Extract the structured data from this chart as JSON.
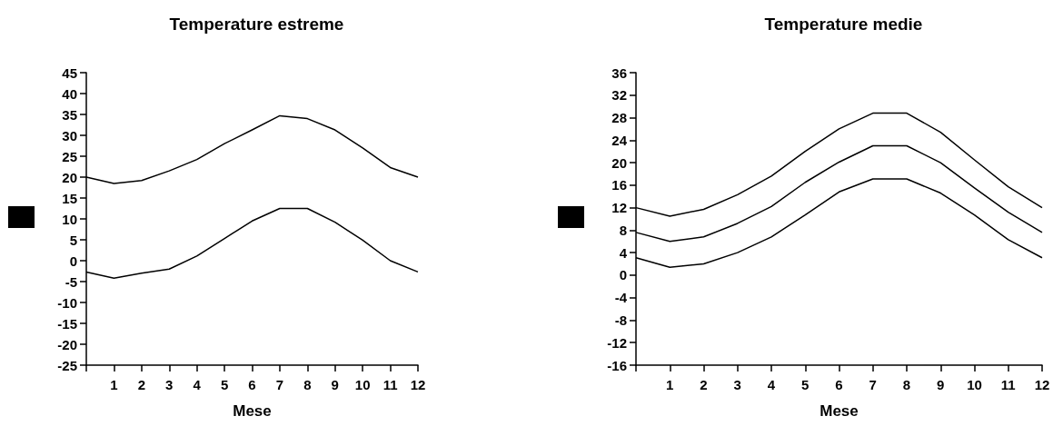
{
  "chart_data": [
    {
      "type": "line",
      "title": "Temperature estreme",
      "xlabel": "Mese",
      "x": [
        0,
        1,
        2,
        3,
        4,
        5,
        6,
        7,
        8,
        9,
        10,
        11,
        12
      ],
      "series": [
        {
          "color": "#000000",
          "values": [
            20,
            18.5,
            19.2,
            21.5,
            24.2,
            28,
            31.3,
            34.7,
            34,
            31.3,
            27,
            22.3,
            20
          ]
        },
        {
          "color": "#000000",
          "values": [
            -2.7,
            -4.2,
            -3,
            -2,
            1.1,
            5.3,
            9.5,
            12.5,
            12.5,
            9.2,
            4.9,
            0,
            -2.7
          ]
        }
      ],
      "xlim": [
        0,
        12
      ],
      "xticks": [
        {
          "value": 0,
          "label": null
        },
        1,
        2,
        3,
        4,
        5,
        6,
        7,
        8,
        9,
        10,
        11,
        12
      ],
      "ylim": [
        -25,
        45
      ],
      "yticks": [
        -25,
        -20,
        -15,
        -10,
        -5,
        0,
        5,
        10,
        15,
        20,
        25,
        30,
        35,
        40,
        45
      ],
      "grid": false,
      "marker": "none",
      "line_style": "solid"
    },
    {
      "type": "line",
      "title": "Temperature medie",
      "xlabel": "Mese",
      "x": [
        0,
        1,
        2,
        3,
        4,
        5,
        6,
        7,
        8,
        9,
        10,
        11,
        12
      ],
      "series": [
        {
          "color": "#000000",
          "values": [
            12,
            10.5,
            11.7,
            14.3,
            17.6,
            22,
            26,
            28.8,
            28.8,
            25.4,
            20.5,
            15.7,
            12
          ]
        },
        {
          "color": "#000000",
          "values": [
            7.6,
            6,
            6.8,
            9.2,
            12.2,
            16.5,
            20.1,
            23,
            23,
            20,
            15.5,
            11.2,
            7.6
          ]
        },
        {
          "color": "#000000",
          "values": [
            3.1,
            1.4,
            2,
            4,
            6.8,
            10.7,
            14.8,
            17.1,
            17.1,
            14.6,
            10.7,
            6.3,
            3.1
          ]
        }
      ],
      "xlim": [
        0,
        12
      ],
      "xticks": [
        {
          "value": 0,
          "label": null
        },
        1,
        2,
        3,
        4,
        5,
        6,
        7,
        8,
        9,
        10,
        11,
        12
      ],
      "ylim": [
        -16,
        36
      ],
      "yticks": [
        -16,
        -12,
        -8,
        -4,
        0,
        4,
        8,
        12,
        16,
        20,
        24,
        28,
        32,
        36
      ],
      "grid": false,
      "marker": "none",
      "line_style": "solid"
    }
  ]
}
